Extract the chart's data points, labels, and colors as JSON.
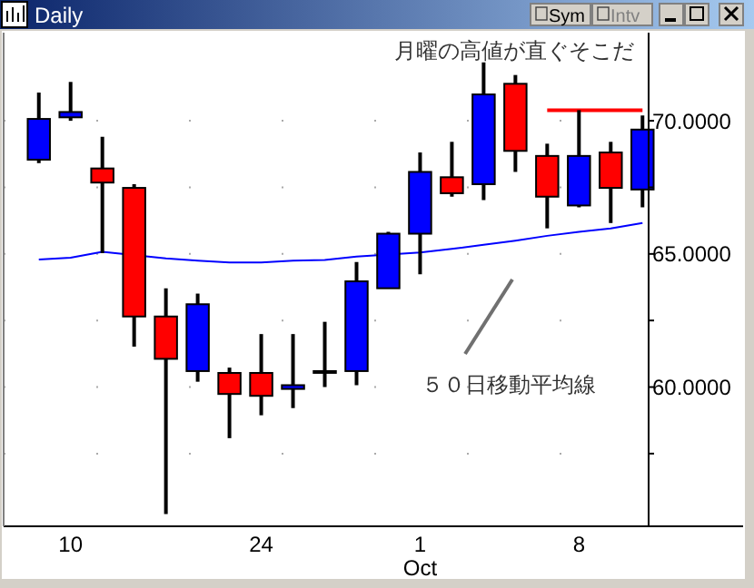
{
  "chart_data": {
    "type": "candlestick",
    "title": "Daily",
    "categories": [
      null,
      "10",
      null,
      null,
      null,
      null,
      null,
      "24",
      null,
      null,
      null,
      null,
      "1\nOct",
      null,
      null,
      null,
      null,
      "8",
      null,
      null
    ],
    "ohlc": [
      [
        68.54,
        71.06,
        68.41,
        70.07
      ],
      [
        70.13,
        71.46,
        70.0,
        70.33
      ],
      [
        68.21,
        69.4,
        65.03,
        67.68
      ],
      [
        67.48,
        67.62,
        61.52,
        62.65
      ],
      [
        62.65,
        63.71,
        55.23,
        61.06
      ],
      [
        60.6,
        63.51,
        60.2,
        63.11
      ],
      [
        60.53,
        60.73,
        58.08,
        59.74
      ],
      [
        60.53,
        61.99,
        58.94,
        59.67
      ],
      [
        59.93,
        61.99,
        59.21,
        60.07
      ],
      [
        60.6,
        62.45,
        60.0,
        60.6
      ],
      [
        60.6,
        64.7,
        60.07,
        63.97
      ],
      [
        63.71,
        65.83,
        63.71,
        65.76
      ],
      [
        65.76,
        68.81,
        64.24,
        68.08
      ],
      [
        67.88,
        69.21,
        67.15,
        67.28
      ],
      [
        67.62,
        72.19,
        67.02,
        70.99
      ],
      [
        71.39,
        71.72,
        68.08,
        68.87
      ],
      [
        68.68,
        69.14,
        65.96,
        67.15
      ],
      [
        66.82,
        70.4,
        66.75,
        68.68
      ],
      [
        68.81,
        69.21,
        66.16,
        67.48
      ],
      [
        67.42,
        70.2,
        66.75,
        69.67
      ]
    ],
    "colors": [
      "#0000ff",
      "#0000ff",
      "#ff0000",
      "#ff0000",
      "#ff0000",
      "#0000ff",
      "#ff0000",
      "#ff0000",
      "#0000ff",
      "#0000ff",
      "#0000ff",
      "#0000ff",
      "#0000ff",
      "#ff0000",
      "#0000ff",
      "#ff0000",
      "#ff0000",
      "#0000ff",
      "#ff0000",
      "#0000ff"
    ],
    "series": [
      {
        "type": "line",
        "color": "#0000ff",
        "values": [
          64.79,
          64.86,
          65.08,
          null,
          64.83,
          64.75,
          64.68,
          64.68,
          64.75,
          64.77,
          64.9,
          null,
          65.05,
          65.19,
          65.34,
          65.5,
          65.68,
          65.83,
          65.96,
          66.16
        ]
      },
      {
        "type": "line",
        "color": "#ff0000",
        "values": [
          null,
          null,
          null,
          null,
          null,
          null,
          null,
          null,
          null,
          null,
          null,
          null,
          null,
          null,
          null,
          null,
          70.4,
          70.4,
          70.4,
          70.4
        ]
      }
    ],
    "ylim": [
      54.77,
      73.31
    ],
    "yticks": [
      {
        "value": 57.5,
        "label": null
      },
      {
        "value": 60,
        "label": "60.0000"
      },
      {
        "value": 62.5,
        "label": null
      },
      {
        "value": 65,
        "label": "65.0000"
      },
      {
        "value": 67.5,
        "label": null
      },
      {
        "value": 70,
        "label": "70.0000"
      }
    ],
    "grid": "y",
    "line_style": "solid",
    "marker": "none",
    "annotations": [
      {
        "text": "月曜の高値が直ぐそこだ"
      },
      "５０日移動平均線",
      {
        "text": "Sym"
      },
      {
        "text": "Intv"
      }
    ]
  }
}
